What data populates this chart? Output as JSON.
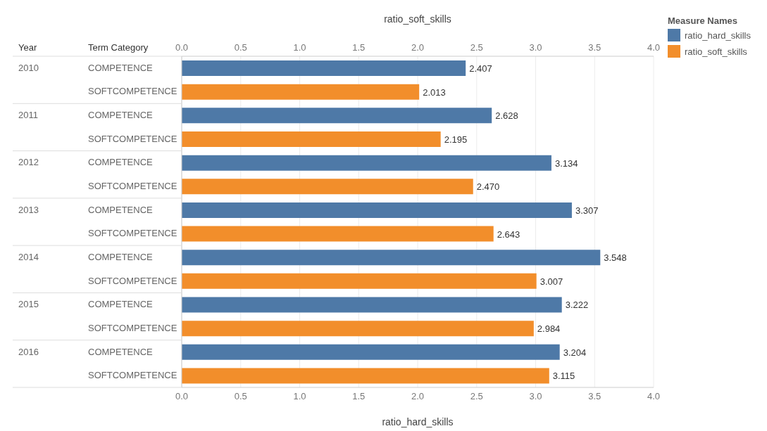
{
  "chart_data": {
    "type": "bar",
    "orientation": "horizontal",
    "categories": [
      "COMPETENCE",
      "SOFTCOMPETENCE",
      "COMPETENCE",
      "SOFTCOMPETENCE",
      "COMPETENCE",
      "SOFTCOMPETENCE",
      "COMPETENCE",
      "SOFTCOMPETENCE",
      "COMPETENCE",
      "SOFTCOMPETENCE",
      "COMPETENCE",
      "SOFTCOMPETENCE",
      "COMPETENCE",
      "SOFTCOMPETENCE"
    ],
    "annotations": [
      "Year",
      "Term Category",
      "2010",
      "2011",
      "2012",
      "2013",
      "2014",
      "2015",
      "2016"
    ],
    "series": [
      {
        "name": "ratio_hard_skills",
        "color": "#4e79a7",
        "values": [
          2.407,
          null,
          2.628,
          null,
          3.134,
          null,
          3.307,
          null,
          3.548,
          null,
          3.222,
          null,
          3.204,
          null
        ],
        "value_labels": [
          "2.407",
          null,
          "2.628",
          null,
          "3.134",
          null,
          "3.307",
          null,
          "3.548",
          null,
          "3.222",
          null,
          "3.204",
          null
        ]
      },
      {
        "name": "ratio_soft_skills",
        "color": "#f28e2b",
        "axis": "x2",
        "values": [
          null,
          2.013,
          null,
          2.195,
          null,
          2.47,
          null,
          2.643,
          null,
          3.007,
          null,
          2.984,
          null,
          3.115
        ],
        "value_labels": [
          null,
          "2.013",
          null,
          "2.195",
          null,
          "2.470",
          null,
          "2.643",
          null,
          "3.007",
          null,
          "2.984",
          null,
          "3.115"
        ]
      }
    ],
    "xlabel": "ratio_hard_skills",
    "x2label": "ratio_soft_skills",
    "legend_title": "Measure Names",
    "xlim": [
      0,
      4
    ],
    "xticks": [
      {
        "value": 0,
        "label": "0.0"
      },
      {
        "value": 0.5,
        "label": "0.5"
      },
      {
        "value": 1,
        "label": "1.0"
      },
      {
        "value": 1.5,
        "label": "1.5"
      },
      {
        "value": 2,
        "label": "2.0"
      },
      {
        "value": 2.5,
        "label": "2.5"
      },
      {
        "value": 3,
        "label": "3.0"
      },
      {
        "value": 3.5,
        "label": "3.5"
      },
      {
        "value": 4,
        "label": "4.0"
      }
    ],
    "x2lim": [
      0,
      4
    ],
    "x2ticks": [
      {
        "value": 0,
        "label": "0.0"
      },
      {
        "value": 0.5,
        "label": "0.5"
      },
      {
        "value": 1,
        "label": "1.0"
      },
      {
        "value": 1.5,
        "label": "1.5"
      },
      {
        "value": 2,
        "label": "2.0"
      },
      {
        "value": 2.5,
        "label": "2.5"
      },
      {
        "value": 3,
        "label": "3.0"
      },
      {
        "value": 3.5,
        "label": "3.5"
      },
      {
        "value": 4,
        "label": "4.0"
      }
    ],
    "grid": "x",
    "legend": "top right"
  }
}
